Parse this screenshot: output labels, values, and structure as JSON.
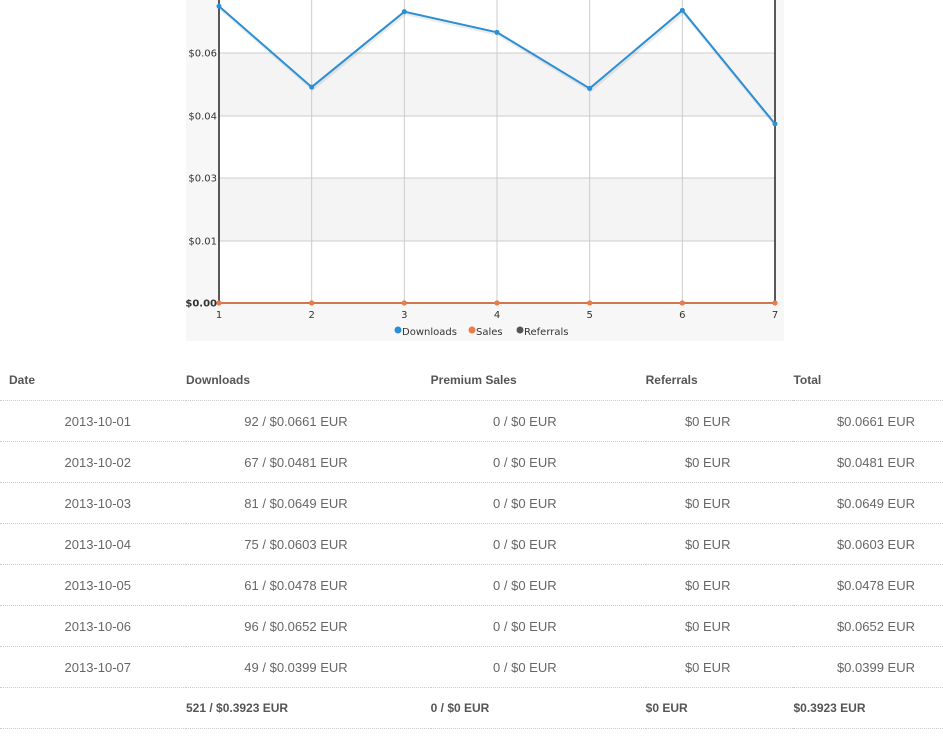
{
  "chart_data": {
    "type": "line",
    "x": [
      1,
      2,
      3,
      4,
      5,
      6,
      7
    ],
    "xticks": [
      "1",
      "2",
      "3",
      "4",
      "5",
      "6",
      "7"
    ],
    "yticks": [
      "$0.00",
      "$0.01",
      "$0.03",
      "$0.04",
      "$0.06"
    ],
    "ylim": [
      0,
      0.0675
    ],
    "grid": true,
    "legend_position": "bottom",
    "series": [
      {
        "name": "Downloads",
        "color": "#2a8fd4",
        "values": [
          0.0661,
          0.0481,
          0.0649,
          0.0603,
          0.0478,
          0.0652,
          0.0399
        ]
      },
      {
        "name": "Sales",
        "color": "#ee7a45",
        "values": [
          0,
          0,
          0,
          0,
          0,
          0,
          0
        ]
      },
      {
        "name": "Referrals",
        "color": "#555555",
        "values": [
          0,
          0,
          0,
          0,
          0,
          0,
          0
        ]
      }
    ]
  },
  "table": {
    "headers": {
      "date": "Date",
      "downloads": "Downloads",
      "premium_sales": "Premium Sales",
      "referrals": "Referrals",
      "total": "Total"
    },
    "rows": [
      {
        "date": "2013-10-01",
        "downloads": "92 / $0.0661 EUR",
        "premium_sales": "0 / $0 EUR",
        "referrals": "$0 EUR",
        "total": "$0.0661 EUR"
      },
      {
        "date": "2013-10-02",
        "downloads": "67 / $0.0481 EUR",
        "premium_sales": "0 / $0 EUR",
        "referrals": "$0 EUR",
        "total": "$0.0481 EUR"
      },
      {
        "date": "2013-10-03",
        "downloads": "81 / $0.0649 EUR",
        "premium_sales": "0 / $0 EUR",
        "referrals": "$0 EUR",
        "total": "$0.0649 EUR"
      },
      {
        "date": "2013-10-04",
        "downloads": "75 / $0.0603 EUR",
        "premium_sales": "0 / $0 EUR",
        "referrals": "$0 EUR",
        "total": "$0.0603 EUR"
      },
      {
        "date": "2013-10-05",
        "downloads": "61 / $0.0478 EUR",
        "premium_sales": "0 / $0 EUR",
        "referrals": "$0 EUR",
        "total": "$0.0478 EUR"
      },
      {
        "date": "2013-10-06",
        "downloads": "96 / $0.0652 EUR",
        "premium_sales": "0 / $0 EUR",
        "referrals": "$0 EUR",
        "total": "$0.0652 EUR"
      },
      {
        "date": "2013-10-07",
        "downloads": "49 / $0.0399 EUR",
        "premium_sales": "0 / $0 EUR",
        "referrals": "$0 EUR",
        "total": "$0.0399 EUR"
      }
    ],
    "totals": {
      "downloads": "521 / $0.3923 EUR",
      "premium_sales": "0 / $0 EUR",
      "referrals": "$0 EUR",
      "total": "$0.3923 EUR"
    }
  }
}
